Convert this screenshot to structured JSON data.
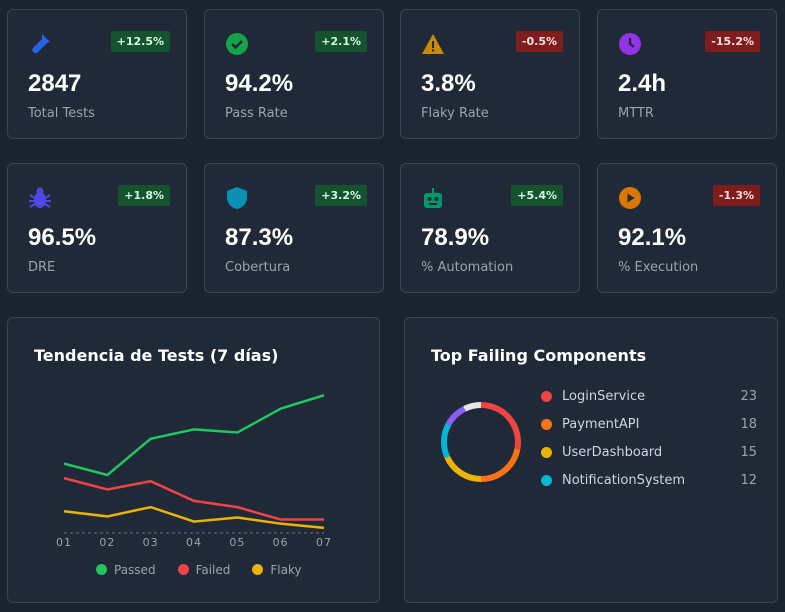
{
  "kpis": [
    {
      "icon": "flask-icon",
      "color": "#2563eb",
      "delta": "+12.5%",
      "trend": "up",
      "value": "2847",
      "label": "Total Tests"
    },
    {
      "icon": "check-circle-icon",
      "color": "#16a34a",
      "delta": "+2.1%",
      "trend": "up",
      "value": "94.2%",
      "label": "Pass Rate"
    },
    {
      "icon": "warning-icon",
      "color": "#ca8a04",
      "delta": "-0.5%",
      "trend": "down",
      "value": "3.8%",
      "label": "Flaky Rate"
    },
    {
      "icon": "clock-icon",
      "color": "#9333ea",
      "delta": "-15.2%",
      "trend": "down",
      "value": "2.4h",
      "label": "MTTR"
    },
    {
      "icon": "bug-icon",
      "color": "#4f46e5",
      "delta": "+1.8%",
      "trend": "up",
      "value": "96.5%",
      "label": "DRE"
    },
    {
      "icon": "shield-icon",
      "color": "#0891b2",
      "delta": "+3.2%",
      "trend": "up",
      "value": "87.3%",
      "label": "Cobertura"
    },
    {
      "icon": "robot-icon",
      "color": "#059669",
      "delta": "+5.4%",
      "trend": "up",
      "value": "78.9%",
      "label": "% Automation"
    },
    {
      "icon": "play-circle-icon",
      "color": "#d97706",
      "delta": "-1.3%",
      "trend": "down",
      "value": "92.1%",
      "label": "% Execution"
    }
  ],
  "chart_data": [
    {
      "type": "line",
      "title": "Tendencia de Tests (7 días)",
      "categories": [
        "01",
        "02",
        "03",
        "04",
        "05",
        "06",
        "07"
      ],
      "ylim": [
        0,
        140
      ],
      "grid": false,
      "legend": "bottom",
      "series": [
        {
          "name": "Passed",
          "color": "#22c55e",
          "values": [
            67,
            56,
            91,
            100,
            97,
            120,
            133
          ]
        },
        {
          "name": "Failed",
          "color": "#ef4444",
          "values": [
            53,
            42,
            50,
            31,
            25,
            13,
            13
          ]
        },
        {
          "name": "Flaky",
          "color": "#eab308",
          "values": [
            21,
            16,
            25,
            11,
            15,
            9,
            5
          ]
        }
      ]
    },
    {
      "type": "pie",
      "title": "Top Failing Components",
      "legend": "right",
      "slices": [
        {
          "name": "LoginService",
          "value": 23,
          "color": "#ef4444"
        },
        {
          "name": "PaymentAPI",
          "value": 18,
          "color": "#f97316"
        },
        {
          "name": "UserDashboard",
          "value": 15,
          "color": "#eab308"
        },
        {
          "name": "NotificationSystem",
          "value": 12,
          "color": "#06b6d4"
        },
        {
          "value": 8,
          "color": "#8b5cf6"
        },
        {
          "value": 6,
          "color": "#e5e7eb"
        }
      ]
    }
  ]
}
